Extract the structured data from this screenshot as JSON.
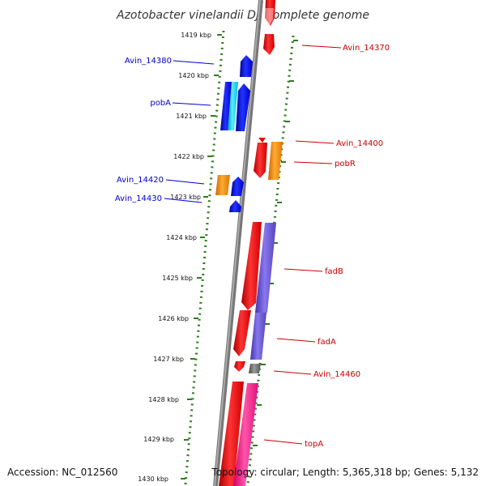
{
  "title": "Azotobacter vinelandii DJ, complete genome",
  "footer": {
    "accession": "Accession: NC_012560",
    "summary": "Topology: circular; Length: 5,365,318 bp; Genes: 5,132"
  },
  "kbp_ticks": [
    "1419 kbp",
    "1420 kbp",
    "1421 kbp",
    "1422 kbp",
    "1423 kbp",
    "1424 kbp",
    "1425 kbp",
    "1426 kbp",
    "1427 kbp",
    "1428 kbp",
    "1429 kbp",
    "1430 kbp"
  ],
  "left_labels": [
    "Avin_14380",
    "pobA",
    "Avin_14420",
    "Avin_14430"
  ],
  "right_labels": [
    "Avin_14370",
    "Avin_14400",
    "pobR",
    "fadB",
    "fadA",
    "Avin_14460",
    "topA"
  ],
  "colors": {
    "left_label": "#0000cc",
    "right_label": "#cc0000",
    "tick_dots": "#2e7d1e",
    "backbone": "#888888",
    "red": "#ee0000",
    "blue": "#0000ee",
    "cyan": "#00ccee",
    "orange": "#ee8800",
    "purple": "#6655cc",
    "pink": "#ee1188",
    "gray": "#666666"
  }
}
